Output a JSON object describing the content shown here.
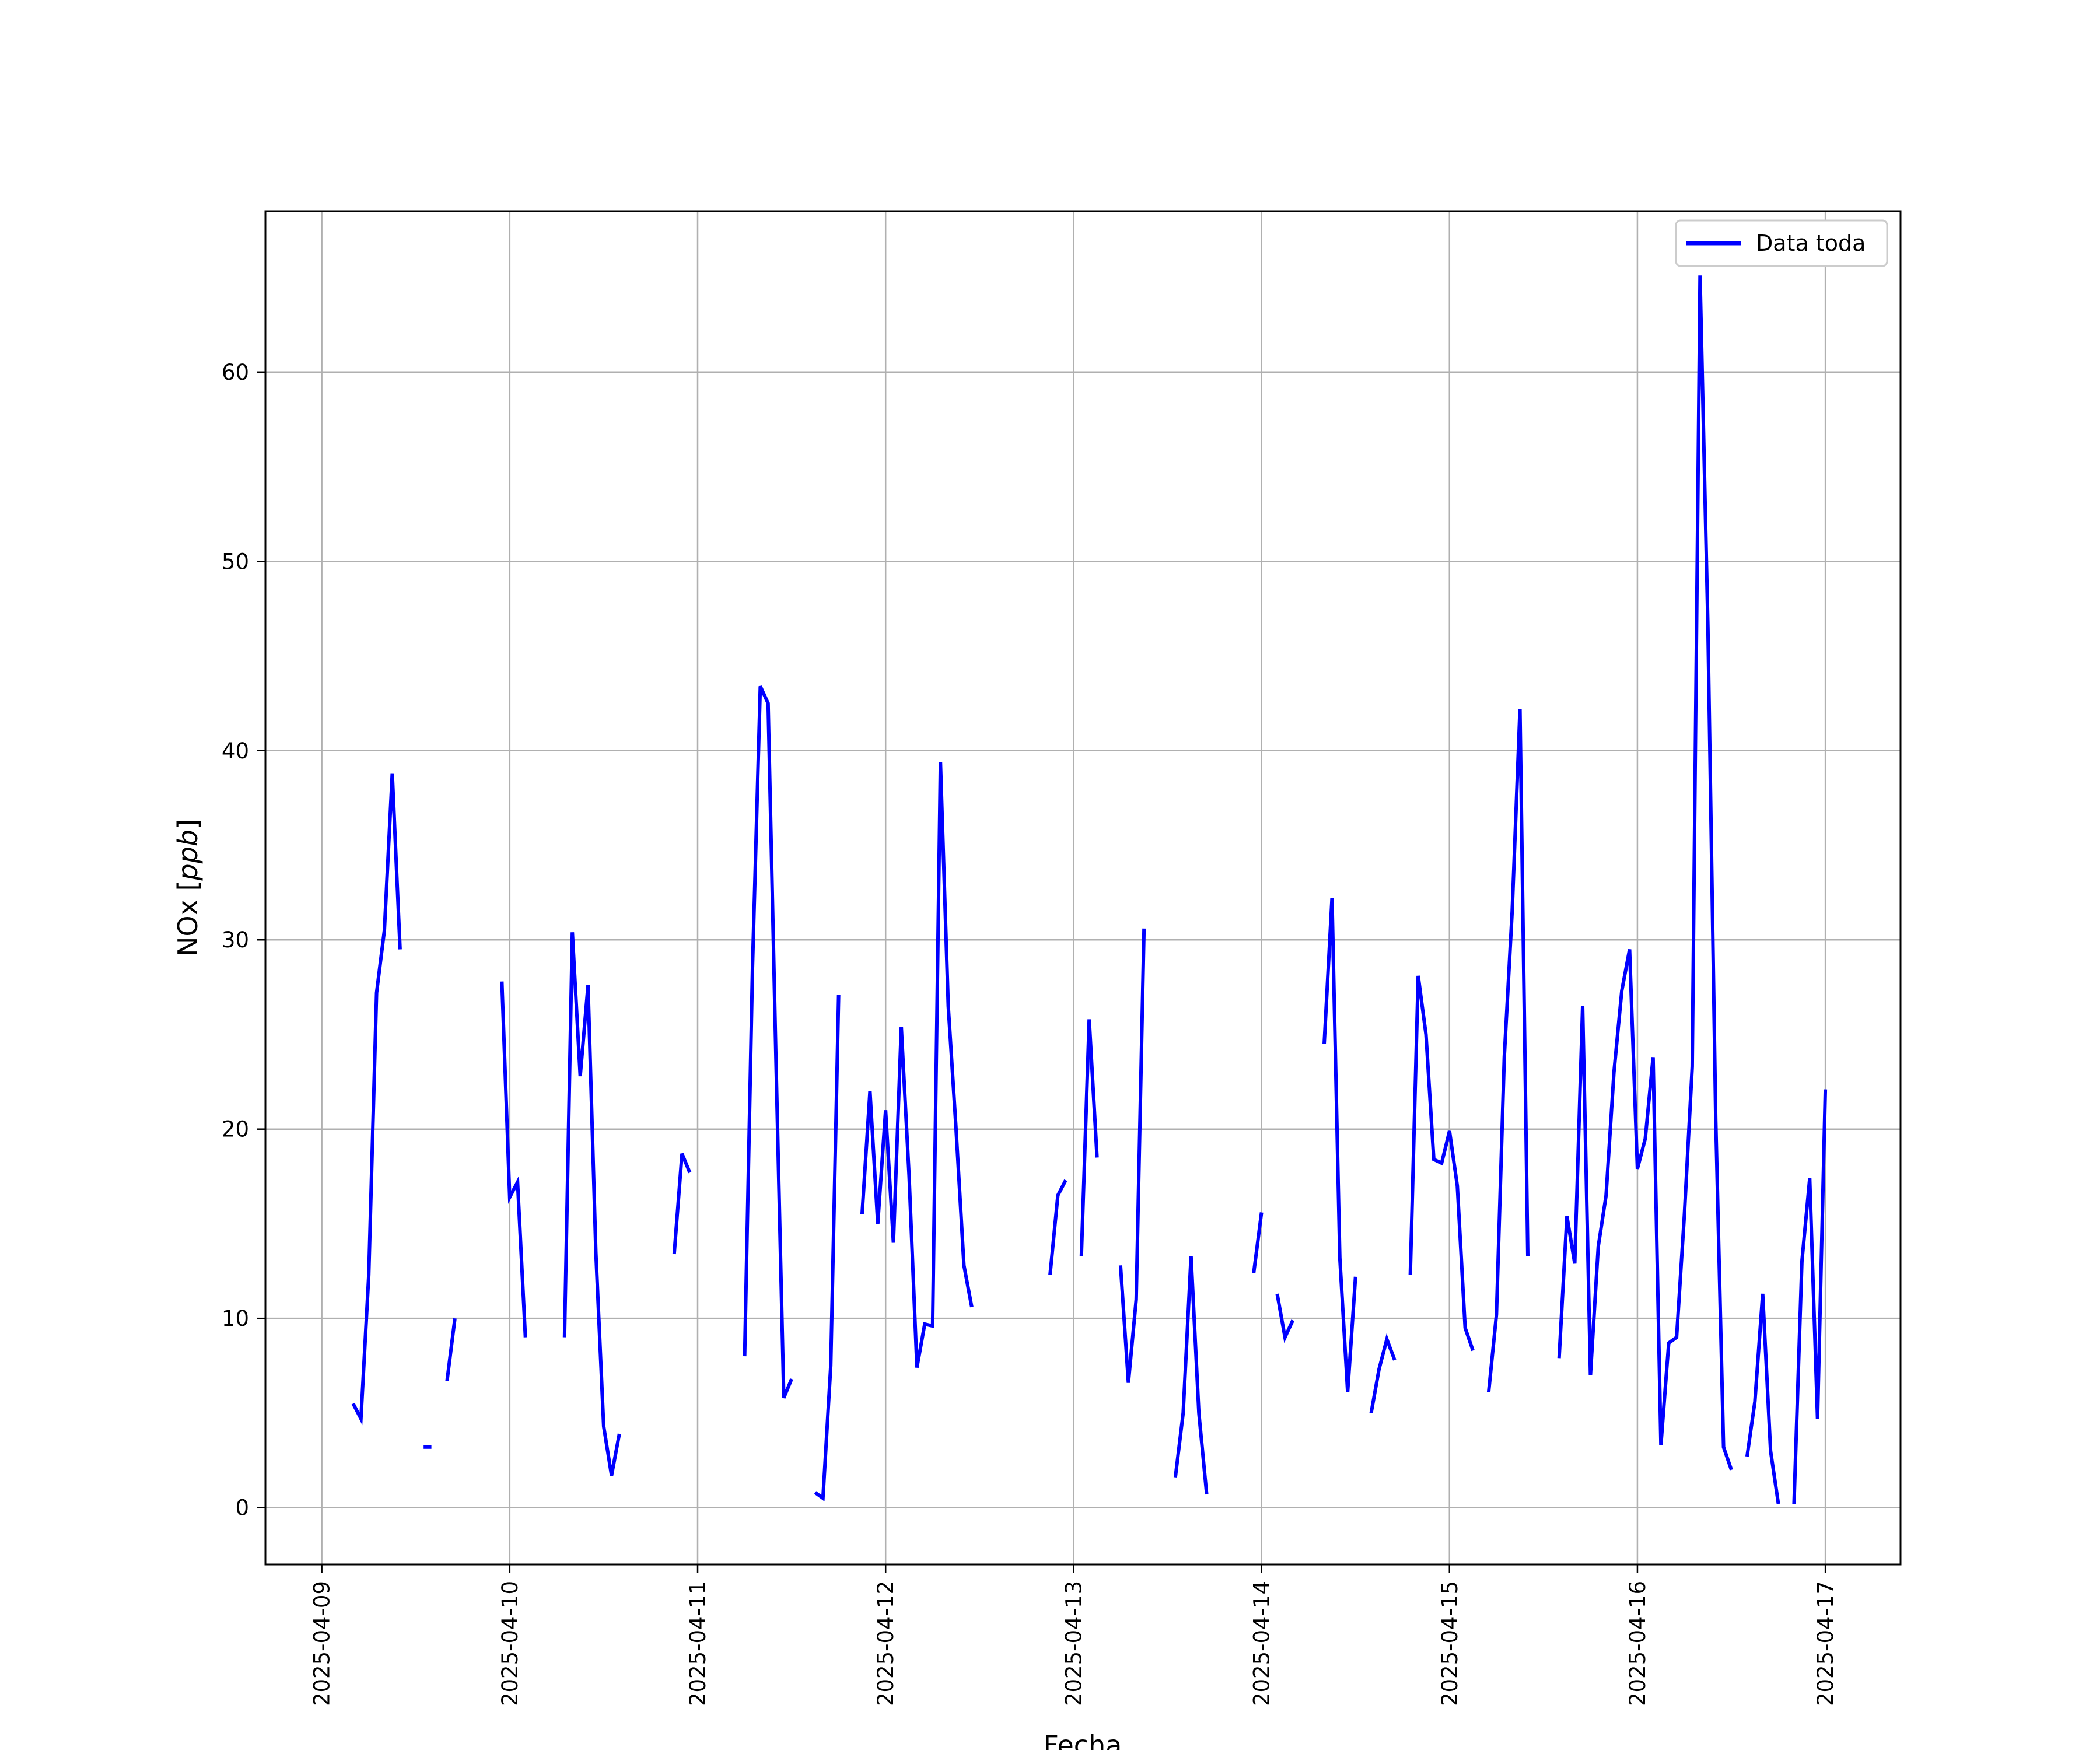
{
  "chart_data": {
    "type": "line",
    "xlabel": "Fecha",
    "ylabel": "NOx [ppb]",
    "ylabel_unit": "ppb",
    "grid": true,
    "legend_position": "top-right",
    "xlim": [
      "2025-04-08T16:48",
      "2025-04-17T09:36"
    ],
    "ylim": [
      -3,
      68.5
    ],
    "x_ticks": [
      "2025-04-09",
      "2025-04-10",
      "2025-04-11",
      "2025-04-12",
      "2025-04-13",
      "2025-04-14",
      "2025-04-15",
      "2025-04-16",
      "2025-04-17"
    ],
    "y_ticks": [
      0,
      10,
      20,
      30,
      40,
      50,
      60
    ],
    "series": [
      {
        "name": "Data toda",
        "color": "#0000ff",
        "segments": [
          [
            [
              "2025-04-09T04:00",
              5.5
            ],
            [
              "2025-04-09T05:00",
              4.7
            ],
            [
              "2025-04-09T06:00",
              12.3
            ],
            [
              "2025-04-09T07:00",
              27.2
            ],
            [
              "2025-04-09T08:00",
              30.5
            ],
            [
              "2025-04-09T09:00",
              38.8
            ],
            [
              "2025-04-09T10:00",
              29.5
            ]
          ],
          [
            [
              "2025-04-09T13:00",
              3.2
            ],
            [
              "2025-04-09T14:00",
              3.2
            ]
          ],
          [
            [
              "2025-04-09T16:00",
              6.7
            ],
            [
              "2025-04-09T17:00",
              10.0
            ]
          ],
          [
            [
              "2025-04-09T23:00",
              27.8
            ],
            [
              "2025-04-10T00:00",
              16.4
            ],
            [
              "2025-04-10T01:00",
              17.2
            ],
            [
              "2025-04-10T02:00",
              9.0
            ]
          ],
          [
            [
              "2025-04-10T07:00",
              9.0
            ],
            [
              "2025-04-10T08:00",
              30.4
            ],
            [
              "2025-04-10T09:00",
              22.8
            ],
            [
              "2025-04-10T10:00",
              27.6
            ],
            [
              "2025-04-10T11:00",
              13.5
            ],
            [
              "2025-04-10T12:00",
              4.3
            ],
            [
              "2025-04-10T13:00",
              1.7
            ],
            [
              "2025-04-10T14:00",
              3.9
            ]
          ],
          [
            [
              "2025-04-10T21:00",
              13.4
            ],
            [
              "2025-04-10T22:00",
              18.7
            ],
            [
              "2025-04-10T23:00",
              17.7
            ]
          ],
          [
            [
              "2025-04-11T06:00",
              8.0
            ],
            [
              "2025-04-11T07:00",
              28.5
            ],
            [
              "2025-04-11T08:00",
              43.4
            ],
            [
              "2025-04-11T09:00",
              42.5
            ],
            [
              "2025-04-11T10:00",
              23.6
            ],
            [
              "2025-04-11T11:00",
              5.8
            ],
            [
              "2025-04-11T12:00",
              6.8
            ]
          ],
          [
            [
              "2025-04-11T15:00",
              0.8
            ],
            [
              "2025-04-11T16:00",
              0.5
            ],
            [
              "2025-04-11T17:00",
              7.5
            ],
            [
              "2025-04-11T18:00",
              27.1
            ]
          ],
          [
            [
              "2025-04-11T21:00",
              15.5
            ],
            [
              "2025-04-11T22:00",
              22.0
            ],
            [
              "2025-04-11T23:00",
              15.0
            ],
            [
              "2025-04-12T00:00",
              21.0
            ],
            [
              "2025-04-12T01:00",
              14.0
            ],
            [
              "2025-04-12T02:00",
              25.4
            ],
            [
              "2025-04-12T03:00",
              17.5
            ],
            [
              "2025-04-12T04:00",
              7.4
            ],
            [
              "2025-04-12T05:00",
              9.7
            ],
            [
              "2025-04-12T06:00",
              9.6
            ],
            [
              "2025-04-12T07:00",
              39.4
            ],
            [
              "2025-04-12T08:00",
              26.5
            ],
            [
              "2025-04-12T09:00",
              20.0
            ],
            [
              "2025-04-12T10:00",
              12.8
            ],
            [
              "2025-04-12T11:00",
              10.6
            ]
          ],
          [
            [
              "2025-04-12T21:00",
              12.3
            ],
            [
              "2025-04-12T22:00",
              16.5
            ],
            [
              "2025-04-12T23:00",
              17.3
            ]
          ],
          [
            [
              "2025-04-13T01:00",
              13.3
            ],
            [
              "2025-04-13T02:00",
              25.8
            ],
            [
              "2025-04-13T03:00",
              18.5
            ]
          ],
          [
            [
              "2025-04-13T06:00",
              12.8
            ],
            [
              "2025-04-13T07:00",
              6.6
            ],
            [
              "2025-04-13T08:00",
              11.0
            ],
            [
              "2025-04-13T09:00",
              30.6
            ]
          ],
          [
            [
              "2025-04-13T13:00",
              1.6
            ],
            [
              "2025-04-13T14:00",
              5.0
            ],
            [
              "2025-04-13T15:00",
              13.3
            ],
            [
              "2025-04-13T16:00",
              5.0
            ],
            [
              "2025-04-13T17:00",
              0.7
            ]
          ],
          [
            [
              "2025-04-13T23:00",
              12.4
            ],
            [
              "2025-04-14T00:00",
              15.6
            ]
          ],
          [
            [
              "2025-04-14T02:00",
              11.3
            ],
            [
              "2025-04-14T03:00",
              9.0
            ],
            [
              "2025-04-14T04:00",
              9.9
            ]
          ],
          [
            [
              "2025-04-14T08:00",
              24.5
            ],
            [
              "2025-04-14T09:00",
              32.2
            ],
            [
              "2025-04-14T10:00",
              13.2
            ],
            [
              "2025-04-14T11:00",
              6.1
            ],
            [
              "2025-04-14T12:00",
              12.2
            ]
          ],
          [
            [
              "2025-04-14T14:00",
              5.0
            ],
            [
              "2025-04-14T15:00",
              7.3
            ],
            [
              "2025-04-14T16:00",
              8.9
            ],
            [
              "2025-04-14T17:00",
              7.8
            ]
          ],
          [
            [
              "2025-04-14T19:00",
              12.3
            ],
            [
              "2025-04-14T20:00",
              28.1
            ],
            [
              "2025-04-14T21:00",
              25.0
            ],
            [
              "2025-04-14T22:00",
              18.4
            ],
            [
              "2025-04-14T23:00",
              18.2
            ],
            [
              "2025-04-15T00:00",
              19.9
            ],
            [
              "2025-04-15T01:00",
              17.0
            ],
            [
              "2025-04-15T02:00",
              9.5
            ],
            [
              "2025-04-15T03:00",
              8.3
            ]
          ],
          [
            [
              "2025-04-15T05:00",
              6.1
            ],
            [
              "2025-04-15T06:00",
              10.2
            ],
            [
              "2025-04-15T07:00",
              23.8
            ],
            [
              "2025-04-15T08:00",
              31.5
            ],
            [
              "2025-04-15T09:00",
              42.2
            ],
            [
              "2025-04-15T10:00",
              13.3
            ]
          ],
          [
            [
              "2025-04-15T14:00",
              7.9
            ],
            [
              "2025-04-15T15:00",
              15.4
            ],
            [
              "2025-04-15T16:00",
              12.9
            ],
            [
              "2025-04-15T17:00",
              26.5
            ],
            [
              "2025-04-15T18:00",
              7.0
            ],
            [
              "2025-04-15T19:00",
              13.8
            ],
            [
              "2025-04-15T20:00",
              16.5
            ],
            [
              "2025-04-15T21:00",
              23.0
            ],
            [
              "2025-04-15T22:00",
              27.3
            ],
            [
              "2025-04-15T23:00",
              29.5
            ],
            [
              "2025-04-16T00:00",
              17.9
            ],
            [
              "2025-04-16T01:00",
              19.5
            ],
            [
              "2025-04-16T02:00",
              23.8
            ],
            [
              "2025-04-16T03:00",
              3.3
            ],
            [
              "2025-04-16T04:00",
              8.7
            ],
            [
              "2025-04-16T05:00",
              9.0
            ],
            [
              "2025-04-16T06:00",
              15.5
            ],
            [
              "2025-04-16T07:00",
              23.3
            ],
            [
              "2025-04-16T08:00",
              65.1
            ],
            [
              "2025-04-16T09:00",
              46.5
            ],
            [
              "2025-04-16T10:00",
              20.5
            ],
            [
              "2025-04-16T11:00",
              3.2
            ],
            [
              "2025-04-16T12:00",
              2.0
            ]
          ],
          [
            [
              "2025-04-16T14:00",
              2.7
            ],
            [
              "2025-04-16T15:00",
              5.6
            ],
            [
              "2025-04-16T16:00",
              11.3
            ],
            [
              "2025-04-16T17:00",
              3.0
            ],
            [
              "2025-04-16T18:00",
              0.2
            ]
          ],
          [
            [
              "2025-04-16T20:00",
              0.2
            ],
            [
              "2025-04-16T21:00",
              13.0
            ],
            [
              "2025-04-16T22:00",
              17.4
            ],
            [
              "2025-04-16T23:00",
              4.7
            ],
            [
              "2025-04-17T00:00",
              22.1
            ]
          ]
        ]
      }
    ]
  }
}
